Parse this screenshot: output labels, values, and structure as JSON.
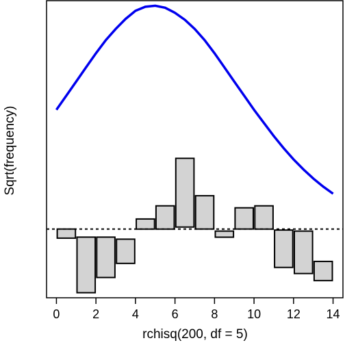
{
  "chart_data": {
    "type": "bar",
    "title": "",
    "xlabel": "rchisq(200, df = 5)",
    "ylabel": "Sqrt(frequency)",
    "xlim": [
      -0.5,
      14.5
    ],
    "ylim": [
      -3.4,
      11.3
    ],
    "grid": false,
    "xticks": [
      "0",
      "2",
      "4",
      "6",
      "8",
      "10",
      "12",
      "14"
    ],
    "reference_line": {
      "y": 0,
      "style": "dashed"
    },
    "curve": {
      "name": "",
      "x": [
        0,
        0.5,
        1,
        1.5,
        2,
        2.5,
        3,
        3.5,
        4,
        4.5,
        5,
        5.5,
        6,
        6.5,
        7,
        7.5,
        8,
        8.5,
        9,
        9.5,
        10,
        10.5,
        11,
        11.5,
        12,
        12.5,
        13,
        13.5,
        14
      ],
      "y": [
        5.9,
        6.6,
        7.3,
        8.0,
        8.7,
        9.35,
        9.9,
        10.4,
        10.8,
        11.0,
        11.05,
        10.95,
        10.7,
        10.35,
        9.9,
        9.35,
        8.7,
        8.0,
        7.3,
        6.6,
        5.9,
        5.25,
        4.6,
        4.0,
        3.45,
        2.95,
        2.5,
        2.1,
        1.75
      ],
      "color": "#0000ee"
    },
    "bars": {
      "fill": "#d3d3d3",
      "edge": "#000000",
      "width": 0.92,
      "x": [
        0.5,
        1.5,
        2.5,
        3.5,
        4.5,
        5.5,
        6.5,
        7.5,
        8.5,
        9.5,
        10.5,
        11.5,
        12.5,
        13.5
      ],
      "top": [
        0,
        -0.4,
        -0.4,
        -0.5,
        0.5,
        1.15,
        3.5,
        1.65,
        -0.1,
        1.05,
        1.15,
        -1.9,
        -2.2,
        -2.55
      ],
      "bottom": [
        -0.45,
        -3.15,
        -2.4,
        -1.7,
        0,
        0,
        0.1,
        0,
        -0.4,
        0,
        0,
        -0.05,
        -0.1,
        -1.6
      ]
    }
  }
}
